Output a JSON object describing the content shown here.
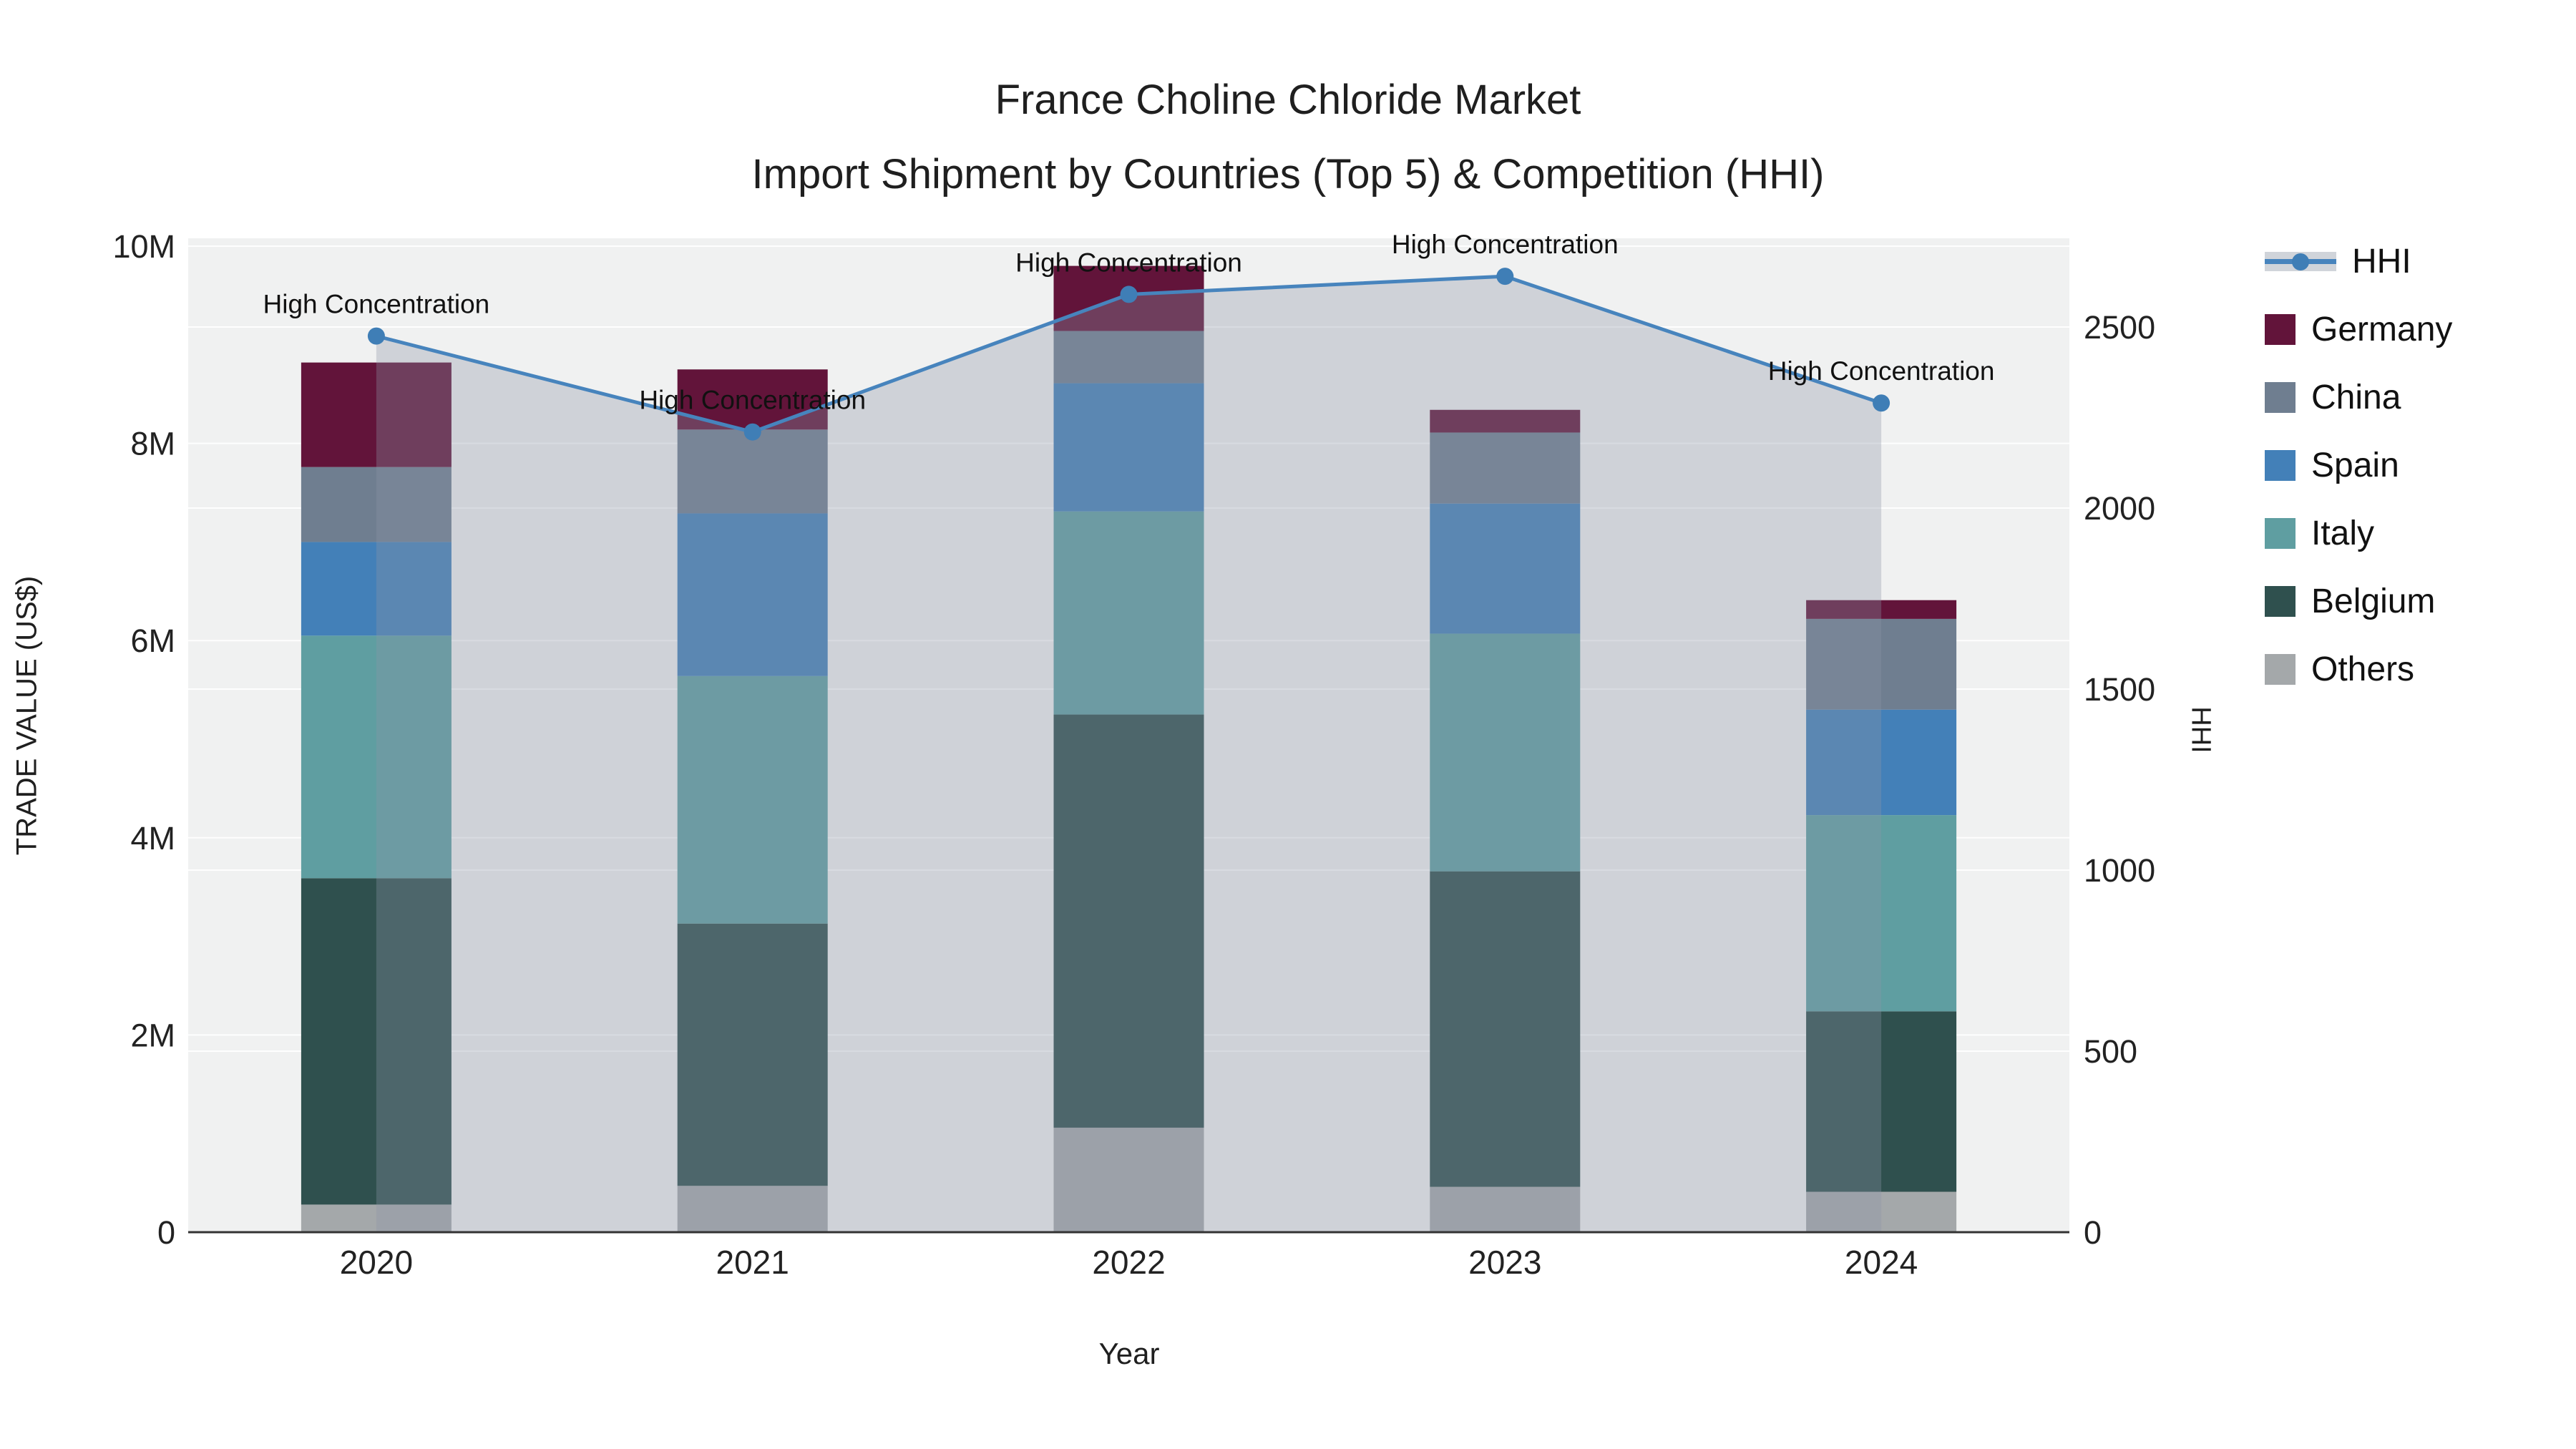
{
  "title": {
    "line1": "France Choline Chloride Market",
    "line2": "Import Shipment by Countries (Top 5) & Competition (HHI)"
  },
  "axes": {
    "x": {
      "title": "Year"
    },
    "y_left": {
      "title": "TRADE VALUE (US$)",
      "tick_labels": [
        "0",
        "2M",
        "4M",
        "6M",
        "8M",
        "10M"
      ],
      "tick_values_musd": [
        0,
        2,
        4,
        6,
        8,
        10
      ],
      "range_musd": [
        0,
        10.08
      ]
    },
    "y_right": {
      "title": "HHI",
      "tick_labels": [
        "0",
        "500",
        "1000",
        "1500",
        "2000",
        "2500"
      ],
      "tick_values": [
        0,
        500,
        1000,
        1500,
        2000,
        2500
      ],
      "range": [
        0,
        2745
      ]
    }
  },
  "legend": {
    "items": [
      {
        "label": "HHI",
        "type": "line"
      },
      {
        "label": "Germany",
        "type": "swatch",
        "color": "#62143a"
      },
      {
        "label": "China",
        "type": "swatch",
        "color": "#6f7e90"
      },
      {
        "label": "Spain",
        "type": "swatch",
        "color": "#4380b8"
      },
      {
        "label": "Italy",
        "type": "swatch",
        "color": "#5f9ea1"
      },
      {
        "label": "Belgium",
        "type": "swatch",
        "color": "#2f504e"
      },
      {
        "label": "Others",
        "type": "swatch",
        "color": "#a4a8aa"
      }
    ]
  },
  "chart_data": {
    "type": "stacked-bar+line-dual-axis",
    "categories": [
      "2020",
      "2021",
      "2022",
      "2023",
      "2024"
    ],
    "unit": "USD millions",
    "series": [
      {
        "name": "Others",
        "color": "#a4a8aa",
        "values_musd": [
          0.28,
          0.47,
          1.06,
          0.46,
          0.41
        ]
      },
      {
        "name": "Belgium",
        "color": "#2f504e",
        "values_musd": [
          3.31,
          2.66,
          4.19,
          3.2,
          1.83
        ]
      },
      {
        "name": "Italy",
        "color": "#5f9ea1",
        "values_musd": [
          2.46,
          2.51,
          2.06,
          2.41,
          1.99
        ]
      },
      {
        "name": "Spain",
        "color": "#4380b8",
        "values_musd": [
          0.95,
          1.65,
          1.3,
          1.32,
          1.07
        ]
      },
      {
        "name": "China",
        "color": "#6f7e90",
        "values_musd": [
          0.76,
          0.85,
          0.53,
          0.72,
          0.92
        ]
      },
      {
        "name": "Germany",
        "color": "#62143a",
        "values_musd": [
          1.06,
          0.61,
          0.66,
          0.23,
          0.19
        ]
      }
    ],
    "bar_totals_musd": [
      8.82,
      8.75,
      9.8,
      8.34,
      6.41
    ],
    "line_series": {
      "name": "HHI",
      "values": [
        2475,
        2210,
        2590,
        2640,
        2290
      ],
      "axis": "right",
      "color": "#4784bd",
      "marker_color": "#3f7eb6",
      "area_fill_color": "rgba(140,150,168,0.33)"
    },
    "annotations": [
      {
        "category": "2020",
        "text": "High Concentration"
      },
      {
        "category": "2021",
        "text": "High Concentration"
      },
      {
        "category": "2022",
        "text": "High Concentration"
      },
      {
        "category": "2023",
        "text": "High Concentration"
      },
      {
        "category": "2024",
        "text": "High Concentration"
      }
    ],
    "layout_hints": {
      "plot_bg": "#f0f1f1",
      "grid_color": "rgba(255,255,255,0.9)",
      "axis_line_color": "#333333",
      "tick_label_color": "#222222",
      "legend_position": "right",
      "gridlines": "horizontal-both-axes"
    }
  }
}
